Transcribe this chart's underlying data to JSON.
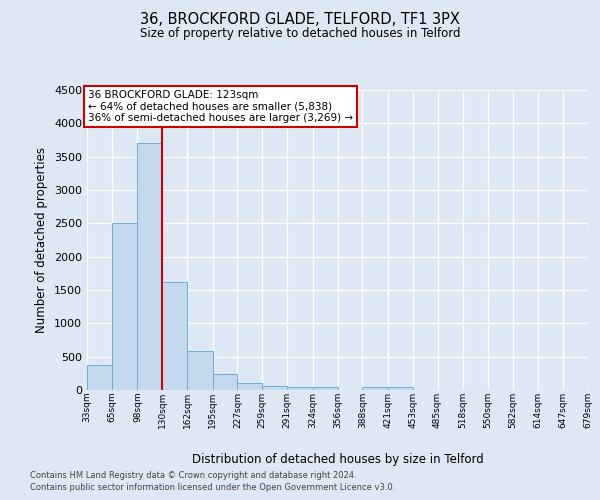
{
  "title": "36, BROCKFORD GLADE, TELFORD, TF1 3PX",
  "subtitle": "Size of property relative to detached houses in Telford",
  "xlabel": "Distribution of detached houses by size in Telford",
  "ylabel": "Number of detached properties",
  "bin_edges": [
    33,
    65,
    98,
    130,
    162,
    195,
    227,
    259,
    291,
    324,
    356,
    388,
    421,
    453,
    485,
    518,
    550,
    582,
    614,
    647,
    679
  ],
  "bar_heights": [
    380,
    2500,
    3700,
    1620,
    590,
    240,
    110,
    65,
    50,
    50,
    0,
    50,
    50,
    0,
    0,
    0,
    0,
    0,
    0,
    0
  ],
  "bar_facecolor": "#c5d9ee",
  "bar_edgecolor": "#6aaed6",
  "vline_x": 130,
  "vline_color": "#cc0000",
  "annotation_line1": "36 BROCKFORD GLADE: 123sqm",
  "annotation_line2": "← 64% of detached houses are smaller (5,838)",
  "annotation_line3": "36% of semi-detached houses are larger (3,269) →",
  "box_edgecolor": "#cc0000",
  "ylim_max": 4500,
  "yticks": [
    0,
    500,
    1000,
    1500,
    2000,
    2500,
    3000,
    3500,
    4000,
    4500
  ],
  "background_color": "#dde8f4",
  "grid_color": "#ffffff",
  "footer_line1": "Contains HM Land Registry data © Crown copyright and database right 2024.",
  "footer_line2": "Contains public sector information licensed under the Open Government Licence v3.0."
}
